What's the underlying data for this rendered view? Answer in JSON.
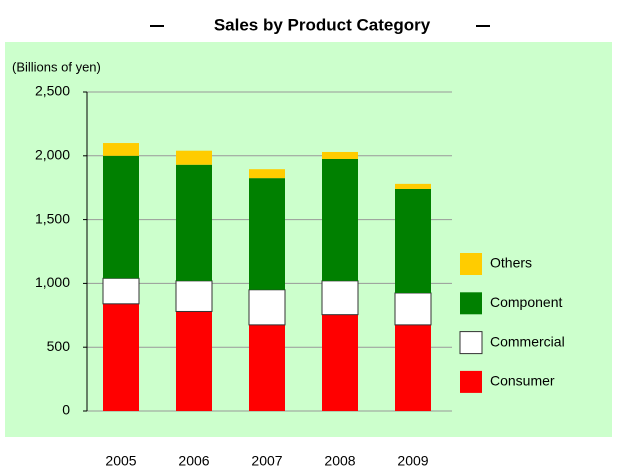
{
  "chart_data": {
    "type": "stacked_bar",
    "title": "Sales by Product Category",
    "y_label": "(Billions of yen)",
    "categories": [
      "2005",
      "2006",
      "2007",
      "2008",
      "2009"
    ],
    "series": [
      {
        "name": "Consumer",
        "color": "#ff0000",
        "values": [
          840,
          780,
          675,
          755,
          675
        ]
      },
      {
        "name": "Commercial",
        "color": "#ffffff",
        "values": [
          200,
          240,
          275,
          265,
          250
        ]
      },
      {
        "name": "Component",
        "color": "#008000",
        "values": [
          960,
          910,
          875,
          955,
          815
        ]
      },
      {
        "name": "Others",
        "color": "#ffcc00",
        "values": [
          100,
          110,
          70,
          55,
          40
        ]
      }
    ],
    "ylim": [
      0,
      2500
    ],
    "yticks": [
      0,
      500,
      {
        "value": 1000,
        "label": "1,000"
      },
      {
        "value": 1500,
        "label": "1,500"
      },
      {
        "value": 2000,
        "label": "2,000"
      },
      {
        "value": 2500,
        "label": "2,500"
      }
    ],
    "grid": true,
    "legend": "right"
  }
}
